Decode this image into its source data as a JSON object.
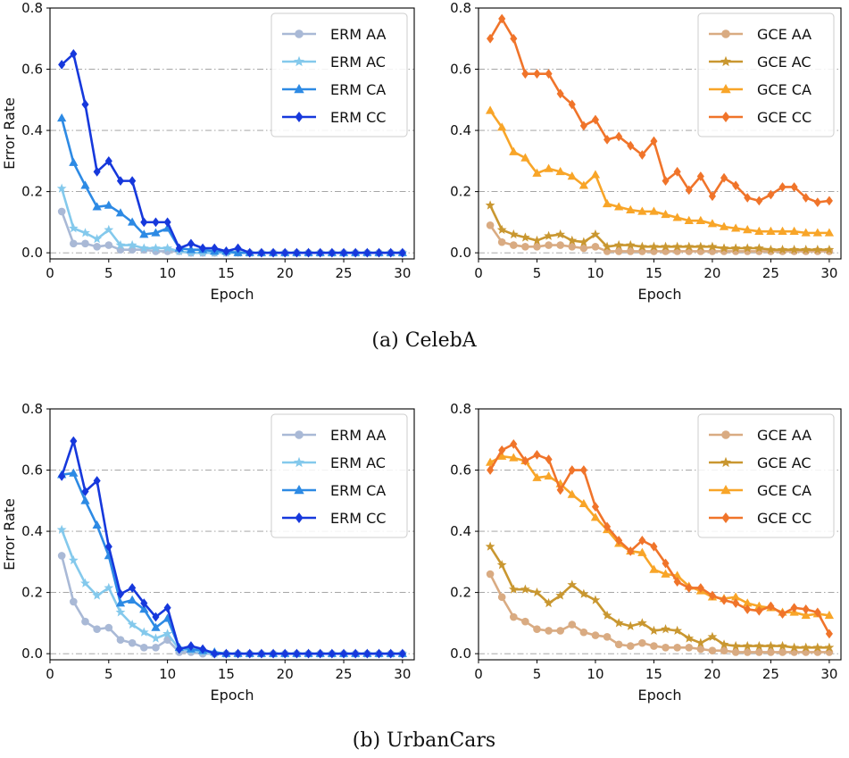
{
  "captions": {
    "a": "(a)  CelebA",
    "b": "(b)  UrbanCars"
  },
  "chart_data": [
    {
      "type": "line",
      "panel": "CelebA-ERM",
      "xlabel": "Epoch",
      "ylabel": "Error Rate",
      "xlim": [
        0,
        31
      ],
      "ylim": [
        -0.02,
        0.8
      ],
      "xticks": [
        0,
        5,
        10,
        15,
        20,
        25,
        30
      ],
      "yticks": [
        0.0,
        0.2,
        0.4,
        0.6,
        0.8
      ],
      "grid": "horizontal-dashdot",
      "legend": "top-right",
      "x": [
        1,
        2,
        3,
        4,
        5,
        6,
        7,
        8,
        9,
        10,
        11,
        12,
        13,
        14,
        15,
        16,
        17,
        18,
        19,
        20,
        21,
        22,
        23,
        24,
        25,
        26,
        27,
        28,
        29,
        30
      ],
      "series": [
        {
          "name": "ERM AA",
          "color": "#a9b9d6",
          "marker": "circle",
          "values": [
            0.135,
            0.03,
            0.03,
            0.02,
            0.025,
            0.01,
            0.01,
            0.01,
            0.005,
            0.005,
            0.005,
            0,
            0,
            0,
            0,
            0,
            0,
            0,
            0,
            0,
            0,
            0,
            0,
            0,
            0,
            0,
            0,
            0,
            0,
            0
          ]
        },
        {
          "name": "ERM AC",
          "color": "#84c9ec",
          "marker": "star",
          "values": [
            0.21,
            0.08,
            0.065,
            0.045,
            0.075,
            0.025,
            0.025,
            0.015,
            0.015,
            0.015,
            0.005,
            0,
            0,
            0,
            0,
            0,
            0,
            0,
            0,
            0,
            0,
            0,
            0,
            0,
            0,
            0,
            0,
            0,
            0,
            0
          ]
        },
        {
          "name": "ERM CA",
          "color": "#2d8ae4",
          "marker": "triangle",
          "values": [
            0.44,
            0.295,
            0.22,
            0.15,
            0.155,
            0.13,
            0.1,
            0.06,
            0.065,
            0.08,
            0.015,
            0.01,
            0.01,
            0.005,
            0.005,
            0,
            0,
            0,
            0,
            0,
            0,
            0,
            0,
            0,
            0,
            0,
            0,
            0,
            0,
            0
          ]
        },
        {
          "name": "ERM CC",
          "color": "#1638dc",
          "marker": "diamond",
          "values": [
            0.615,
            0.65,
            0.485,
            0.265,
            0.3,
            0.235,
            0.235,
            0.1,
            0.1,
            0.1,
            0.015,
            0.03,
            0.015,
            0.015,
            0.005,
            0.015,
            0,
            0,
            0,
            0,
            0,
            0,
            0,
            0,
            0,
            0,
            0,
            0,
            0,
            0
          ]
        }
      ]
    },
    {
      "type": "line",
      "panel": "CelebA-GCE",
      "xlabel": "Epoch",
      "ylabel": "",
      "xlim": [
        0,
        31
      ],
      "ylim": [
        -0.02,
        0.8
      ],
      "xticks": [
        0,
        5,
        10,
        15,
        20,
        25,
        30
      ],
      "yticks": [
        0.0,
        0.2,
        0.4,
        0.6,
        0.8
      ],
      "grid": "horizontal-dashdot",
      "legend": "top-right",
      "x": [
        1,
        2,
        3,
        4,
        5,
        6,
        7,
        8,
        9,
        10,
        11,
        12,
        13,
        14,
        15,
        16,
        17,
        18,
        19,
        20,
        21,
        22,
        23,
        24,
        25,
        26,
        27,
        28,
        29,
        30
      ],
      "series": [
        {
          "name": "GCE AA",
          "color": "#d9ab82",
          "marker": "circle",
          "values": [
            0.09,
            0.035,
            0.025,
            0.02,
            0.02,
            0.025,
            0.025,
            0.02,
            0.015,
            0.02,
            0.005,
            0.005,
            0.005,
            0.005,
            0.005,
            0.005,
            0.005,
            0.005,
            0.005,
            0.005,
            0.005,
            0.005,
            0.005,
            0.005,
            0.005,
            0.005,
            0.005,
            0.005,
            0.005,
            0.005
          ]
        },
        {
          "name": "GCE AC",
          "color": "#c99730",
          "marker": "star",
          "values": [
            0.155,
            0.075,
            0.06,
            0.05,
            0.04,
            0.055,
            0.06,
            0.04,
            0.035,
            0.06,
            0.02,
            0.025,
            0.025,
            0.02,
            0.02,
            0.02,
            0.02,
            0.02,
            0.02,
            0.02,
            0.015,
            0.015,
            0.015,
            0.015,
            0.01,
            0.01,
            0.01,
            0.01,
            0.01,
            0.01
          ]
        },
        {
          "name": "GCE CA",
          "color": "#f8a528",
          "marker": "triangle",
          "values": [
            0.465,
            0.41,
            0.33,
            0.31,
            0.26,
            0.275,
            0.265,
            0.25,
            0.22,
            0.255,
            0.16,
            0.15,
            0.14,
            0.135,
            0.135,
            0.125,
            0.115,
            0.105,
            0.105,
            0.095,
            0.085,
            0.08,
            0.075,
            0.07,
            0.07,
            0.07,
            0.07,
            0.065,
            0.065,
            0.065
          ]
        },
        {
          "name": "GCE CC",
          "color": "#f0742a",
          "marker": "diamond",
          "values": [
            0.7,
            0.765,
            0.7,
            0.585,
            0.585,
            0.585,
            0.52,
            0.485,
            0.415,
            0.435,
            0.37,
            0.38,
            0.35,
            0.32,
            0.365,
            0.235,
            0.265,
            0.205,
            0.25,
            0.185,
            0.245,
            0.22,
            0.18,
            0.17,
            0.19,
            0.215,
            0.215,
            0.18,
            0.165,
            0.17
          ]
        }
      ]
    },
    {
      "type": "line",
      "panel": "UrbanCars-ERM",
      "xlabel": "Epoch",
      "ylabel": "Error Rate",
      "xlim": [
        0,
        31
      ],
      "ylim": [
        -0.02,
        0.8
      ],
      "xticks": [
        0,
        5,
        10,
        15,
        20,
        25,
        30
      ],
      "yticks": [
        0.0,
        0.2,
        0.4,
        0.6,
        0.8
      ],
      "grid": "horizontal-dashdot",
      "legend": "top-right",
      "x": [
        1,
        2,
        3,
        4,
        5,
        6,
        7,
        8,
        9,
        10,
        11,
        12,
        13,
        14,
        15,
        16,
        17,
        18,
        19,
        20,
        21,
        22,
        23,
        24,
        25,
        26,
        27,
        28,
        29,
        30
      ],
      "series": [
        {
          "name": "ERM AA",
          "color": "#a9b9d6",
          "marker": "circle",
          "values": [
            0.32,
            0.17,
            0.105,
            0.08,
            0.085,
            0.045,
            0.035,
            0.02,
            0.02,
            0.045,
            0.005,
            0.005,
            0,
            0,
            0,
            0,
            0,
            0,
            0,
            0,
            0,
            0,
            0,
            0,
            0,
            0,
            0,
            0,
            0,
            0
          ]
        },
        {
          "name": "ERM AC",
          "color": "#84c9ec",
          "marker": "star",
          "values": [
            0.405,
            0.305,
            0.23,
            0.19,
            0.215,
            0.135,
            0.095,
            0.07,
            0.05,
            0.065,
            0.015,
            0.01,
            0.005,
            0,
            0,
            0,
            0,
            0,
            0,
            0,
            0,
            0,
            0,
            0,
            0,
            0,
            0,
            0,
            0,
            0
          ]
        },
        {
          "name": "ERM CA",
          "color": "#2d8ae4",
          "marker": "triangle",
          "values": [
            0.585,
            0.59,
            0.5,
            0.42,
            0.32,
            0.165,
            0.175,
            0.145,
            0.085,
            0.115,
            0.02,
            0.015,
            0.01,
            0.005,
            0,
            0,
            0,
            0,
            0,
            0,
            0,
            0,
            0,
            0,
            0,
            0,
            0,
            0,
            0,
            0
          ]
        },
        {
          "name": "ERM CC",
          "color": "#1638dc",
          "marker": "diamond",
          "values": [
            0.58,
            0.695,
            0.53,
            0.565,
            0.35,
            0.195,
            0.215,
            0.165,
            0.12,
            0.15,
            0.015,
            0.025,
            0.015,
            0,
            0,
            0,
            0,
            0,
            0,
            0,
            0,
            0,
            0,
            0,
            0,
            0,
            0,
            0,
            0,
            0
          ]
        }
      ]
    },
    {
      "type": "line",
      "panel": "UrbanCars-GCE",
      "xlabel": "Epoch",
      "ylabel": "",
      "xlim": [
        0,
        31
      ],
      "ylim": [
        -0.02,
        0.8
      ],
      "xticks": [
        0,
        5,
        10,
        15,
        20,
        25,
        30
      ],
      "yticks": [
        0.0,
        0.2,
        0.4,
        0.6,
        0.8
      ],
      "grid": "horizontal-dashdot",
      "legend": "top-right",
      "x": [
        1,
        2,
        3,
        4,
        5,
        6,
        7,
        8,
        9,
        10,
        11,
        12,
        13,
        14,
        15,
        16,
        17,
        18,
        19,
        20,
        21,
        22,
        23,
        24,
        25,
        26,
        27,
        28,
        29,
        30
      ],
      "series": [
        {
          "name": "GCE AA",
          "color": "#d9ab82",
          "marker": "circle",
          "values": [
            0.26,
            0.185,
            0.12,
            0.105,
            0.08,
            0.075,
            0.075,
            0.095,
            0.07,
            0.06,
            0.055,
            0.03,
            0.025,
            0.035,
            0.025,
            0.02,
            0.02,
            0.02,
            0.015,
            0.01,
            0.01,
            0.005,
            0.005,
            0.005,
            0.005,
            0.005,
            0.005,
            0.005,
            0.005,
            0.005
          ]
        },
        {
          "name": "GCE AC",
          "color": "#c99730",
          "marker": "star",
          "values": [
            0.35,
            0.29,
            0.21,
            0.21,
            0.2,
            0.165,
            0.19,
            0.225,
            0.195,
            0.175,
            0.125,
            0.1,
            0.09,
            0.1,
            0.075,
            0.08,
            0.075,
            0.05,
            0.035,
            0.055,
            0.03,
            0.025,
            0.025,
            0.025,
            0.025,
            0.025,
            0.02,
            0.02,
            0.02,
            0.02
          ]
        },
        {
          "name": "GCE CA",
          "color": "#f8a528",
          "marker": "triangle",
          "values": [
            0.625,
            0.645,
            0.64,
            0.63,
            0.575,
            0.58,
            0.555,
            0.52,
            0.49,
            0.445,
            0.405,
            0.36,
            0.335,
            0.33,
            0.275,
            0.26,
            0.255,
            0.22,
            0.205,
            0.185,
            0.18,
            0.185,
            0.165,
            0.155,
            0.15,
            0.135,
            0.135,
            0.125,
            0.13,
            0.125
          ]
        },
        {
          "name": "GCE CC",
          "color": "#f0742a",
          "marker": "diamond",
          "values": [
            0.6,
            0.665,
            0.685,
            0.63,
            0.65,
            0.635,
            0.535,
            0.6,
            0.6,
            0.48,
            0.415,
            0.37,
            0.335,
            0.37,
            0.35,
            0.295,
            0.235,
            0.215,
            0.215,
            0.19,
            0.175,
            0.165,
            0.145,
            0.14,
            0.155,
            0.13,
            0.15,
            0.145,
            0.135,
            0.065
          ]
        }
      ]
    }
  ]
}
